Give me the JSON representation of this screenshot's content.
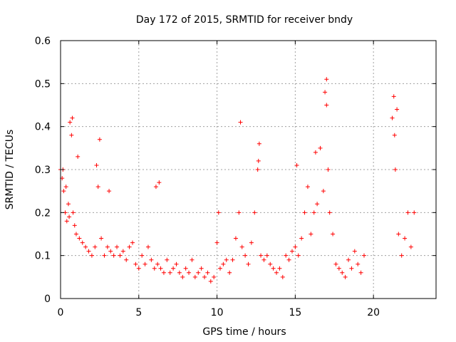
{
  "chart_data": {
    "type": "scatter",
    "title": "Day 172 of 2015, SRMTID for receiver bndy",
    "xlabel": "GPS time / hours",
    "ylabel": "SRMTID / TECUs",
    "xlim": [
      0,
      24
    ],
    "ylim": [
      0,
      0.6
    ],
    "x_ticks": [
      0,
      5,
      10,
      15,
      20
    ],
    "y_ticks": [
      0,
      0.1,
      0.2,
      0.3,
      0.4,
      0.5,
      0.6
    ],
    "x_tick_labels": [
      "0",
      "5",
      "10",
      "15",
      "20"
    ],
    "y_tick_labels": [
      "0",
      "0.1",
      "0.2",
      "0.3",
      "0.4",
      "0.5",
      "0.6"
    ],
    "grid": true,
    "marker": "+",
    "color": "#ff0000",
    "series": [
      {
        "name": "SRMTID",
        "x": [
          0.0,
          0.1,
          0.2,
          0.3,
          0.4,
          0.5,
          0.6,
          0.7,
          0.8,
          0.9,
          1.0,
          1.2,
          1.4,
          1.6,
          1.8,
          2.0,
          2.2,
          2.4,
          2.6,
          2.8,
          3.0,
          3.2,
          3.4,
          3.6,
          3.8,
          4.0,
          4.2,
          4.4,
          4.6,
          4.8,
          5.0,
          5.2,
          5.4,
          5.6,
          5.8,
          6.0,
          6.2,
          6.4,
          6.6,
          6.8,
          7.0,
          7.2,
          7.4,
          7.6,
          7.8,
          8.0,
          8.2,
          8.4,
          8.6,
          8.8,
          9.0,
          9.2,
          9.4,
          9.6,
          9.8,
          10.0,
          10.2,
          10.4,
          10.6,
          10.8,
          11.0,
          11.2,
          11.4,
          11.6,
          11.8,
          12.0,
          12.2,
          12.4,
          12.6,
          12.8,
          13.0,
          13.2,
          13.4,
          13.6,
          13.8,
          14.0,
          14.2,
          14.4,
          14.6,
          14.8,
          15.0,
          15.2,
          15.4,
          15.6,
          15.8,
          16.0,
          16.2,
          16.4,
          16.6,
          16.8,
          17.0,
          17.2,
          17.4,
          17.6,
          17.8,
          18.0,
          18.2,
          18.4,
          18.6,
          18.8,
          19.0,
          19.2,
          19.4,
          21.2,
          21.4,
          21.6,
          21.8,
          22.0,
          22.2,
          22.4,
          22.6,
          0.15,
          0.35,
          0.55,
          0.75,
          1.1,
          2.3,
          2.5,
          3.1,
          6.1,
          6.3,
          10.1,
          11.5,
          12.7,
          12.65,
          15.1,
          16.3,
          16.9,
          17.0,
          17.1,
          21.3,
          21.35,
          21.5
        ],
        "y": [
          0.3,
          0.28,
          0.25,
          0.2,
          0.18,
          0.22,
          0.41,
          0.38,
          0.2,
          0.17,
          0.15,
          0.14,
          0.13,
          0.12,
          0.11,
          0.1,
          0.12,
          0.26,
          0.14,
          0.1,
          0.12,
          0.11,
          0.1,
          0.12,
          0.1,
          0.11,
          0.09,
          0.12,
          0.13,
          0.08,
          0.07,
          0.1,
          0.08,
          0.12,
          0.09,
          0.07,
          0.08,
          0.07,
          0.06,
          0.09,
          0.06,
          0.07,
          0.08,
          0.06,
          0.05,
          0.07,
          0.06,
          0.09,
          0.05,
          0.06,
          0.07,
          0.05,
          0.06,
          0.04,
          0.05,
          0.13,
          0.07,
          0.08,
          0.09,
          0.06,
          0.09,
          0.14,
          0.2,
          0.12,
          0.1,
          0.08,
          0.13,
          0.2,
          0.3,
          0.1,
          0.09,
          0.1,
          0.08,
          0.07,
          0.06,
          0.07,
          0.05,
          0.1,
          0.09,
          0.11,
          0.12,
          0.1,
          0.14,
          0.2,
          0.26,
          0.15,
          0.2,
          0.22,
          0.35,
          0.25,
          0.45,
          0.2,
          0.15,
          0.08,
          0.07,
          0.06,
          0.05,
          0.09,
          0.07,
          0.11,
          0.08,
          0.06,
          0.1,
          0.42,
          0.3,
          0.15,
          0.1,
          0.14,
          0.2,
          0.12,
          0.2,
          0.3,
          0.26,
          0.19,
          0.42,
          0.33,
          0.31,
          0.37,
          0.25,
          0.26,
          0.27,
          0.2,
          0.41,
          0.36,
          0.32,
          0.31,
          0.34,
          0.48,
          0.51,
          0.3,
          0.47,
          0.38,
          0.44
        ]
      }
    ]
  }
}
